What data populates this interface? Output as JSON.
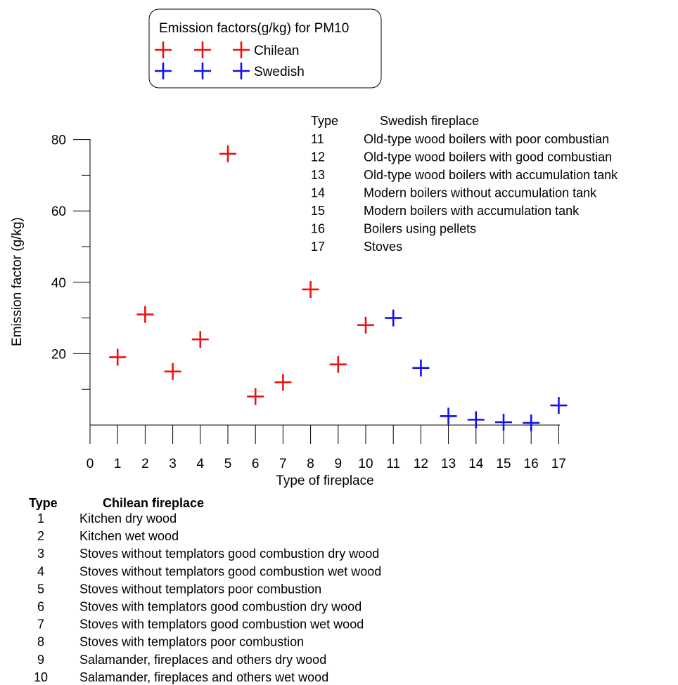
{
  "chart_data": {
    "type": "scatter",
    "title": "",
    "xlabel": "Type of fireplace",
    "ylabel": "Emission factor (g/kg)",
    "xlim": [
      0,
      17
    ],
    "ylim": [
      0,
      80
    ],
    "x_ticks": [
      0,
      1,
      2,
      3,
      4,
      5,
      6,
      7,
      8,
      9,
      10,
      11,
      12,
      13,
      14,
      15,
      16,
      17
    ],
    "y_ticks_labeled": [
      20,
      40,
      60,
      80
    ],
    "y_ticks_minor": [
      10,
      30,
      50,
      70
    ],
    "grid": false,
    "legend": {
      "title": "Emission factors(g/kg) for PM10",
      "placement": "top-center"
    },
    "series": [
      {
        "name": "Chilean",
        "color": "#ee1111",
        "marker": "plus",
        "x": [
          1,
          2,
          3,
          4,
          5,
          6,
          7,
          8,
          9,
          10
        ],
        "y": [
          19,
          31,
          15,
          24,
          76,
          8,
          12,
          38,
          17,
          28
        ]
      },
      {
        "name": "Swedish",
        "color": "#1010ee",
        "marker": "plus",
        "x": [
          11,
          12,
          13,
          14,
          15,
          16,
          17
        ],
        "y": [
          30,
          16,
          2.5,
          1.5,
          0.8,
          0.6,
          5.5
        ]
      }
    ]
  },
  "swedish_table": {
    "header_type": "Type",
    "header_name": "Swedish fireplace",
    "rows": [
      {
        "type": "11",
        "name": "Old-type wood boilers with poor combustian"
      },
      {
        "type": "12",
        "name": "Old-type wood boilers with good combustian"
      },
      {
        "type": "13",
        "name": "Old-type wood boilers with accumulation tank"
      },
      {
        "type": "14",
        "name": "Modern boilers without accumulation tank"
      },
      {
        "type": "15",
        "name": "Modern boilers with accumulation tank"
      },
      {
        "type": "16",
        "name": "Boilers using pellets"
      },
      {
        "type": "17",
        "name": "Stoves"
      }
    ]
  },
  "chilean_table": {
    "header_type": "Type",
    "header_name": "Chilean fireplace",
    "rows": [
      {
        "type": "1",
        "name": "Kitchen dry wood"
      },
      {
        "type": "2",
        "name": "Kitchen wet wood"
      },
      {
        "type": "3",
        "name": "Stoves without templators good combustion dry wood"
      },
      {
        "type": "4",
        "name": "Stoves without templators good combustion wet wood"
      },
      {
        "type": "5",
        "name": "Stoves without templators  poor combustion"
      },
      {
        "type": "6",
        "name": "Stoves with templators good combustion dry wood"
      },
      {
        "type": "7",
        "name": "Stoves with templators good combustion wet wood"
      },
      {
        "type": "8",
        "name": "Stoves with templators  poor combustion"
      },
      {
        "type": "9",
        "name": "Salamander, fireplaces and others dry wood"
      },
      {
        "type": "10",
        "name": "Salamander, fireplaces and others wet wood"
      }
    ]
  }
}
